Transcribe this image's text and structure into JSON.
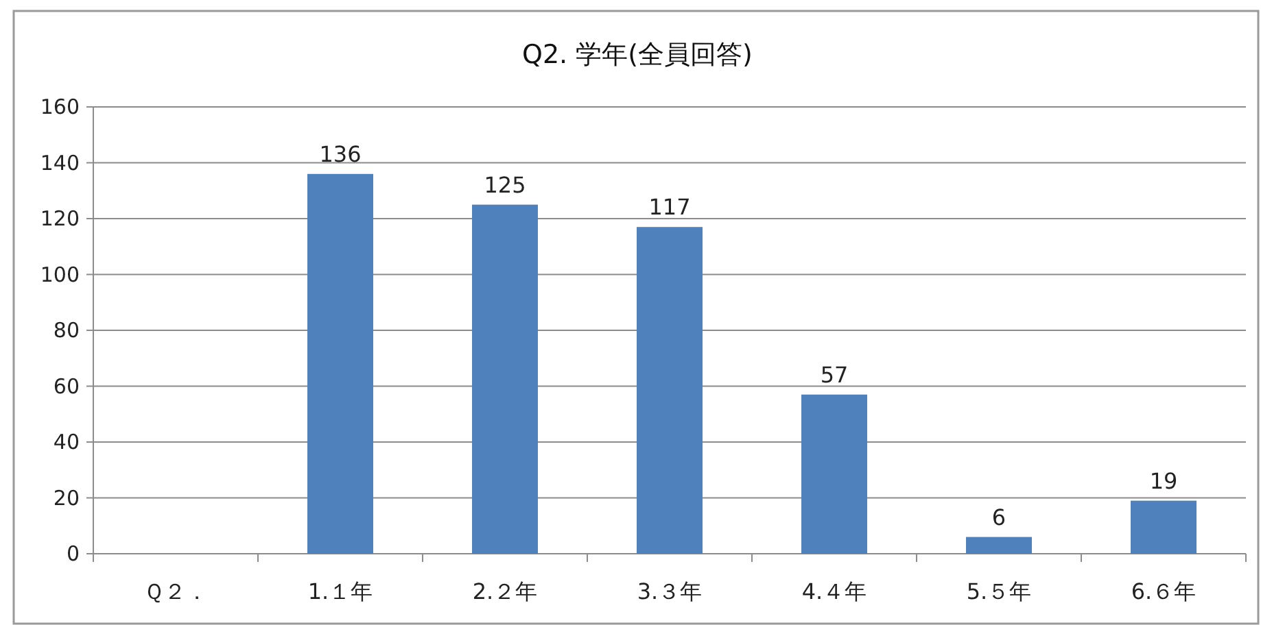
{
  "chart_data": {
    "type": "bar",
    "title": "Q2. 学年(全員回答)",
    "categories": [
      "Ｑ２．",
      "1.１年",
      "2.２年",
      "3.３年",
      "4.４年",
      "5.５年",
      "6.６年"
    ],
    "values": [
      null,
      136,
      125,
      117,
      57,
      6,
      19
    ],
    "color": "#4f81bd",
    "ylim": [
      0,
      160
    ],
    "yticks": [
      0,
      20,
      40,
      60,
      80,
      100,
      120,
      140,
      160
    ],
    "grid": "y",
    "data_labels": true
  }
}
